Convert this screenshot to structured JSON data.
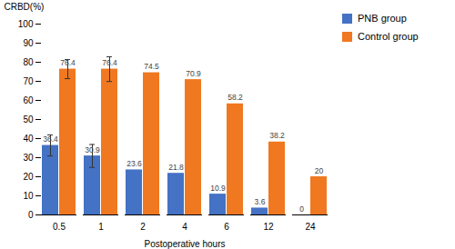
{
  "chart_data": {
    "type": "bar",
    "categories": [
      "0.5",
      "1",
      "2",
      "4",
      "6",
      "12",
      "24"
    ],
    "series": [
      {
        "name": "PNB group",
        "color": "#4472C4",
        "values": [
          36.4,
          30.9,
          23.6,
          21.8,
          10.9,
          3.6,
          0
        ],
        "errors": [
          5.5,
          6.0,
          0,
          0,
          0,
          0,
          0
        ]
      },
      {
        "name": "Control group",
        "color": "#F07820",
        "values": [
          76.4,
          76.4,
          74.5,
          70.9,
          58.2,
          38.2,
          20
        ],
        "errors": [
          5.0,
          6.5,
          0,
          0,
          0,
          0,
          0
        ]
      }
    ],
    "xlabel": "Postoperative hours",
    "ylabel": "CRBD(%)",
    "ylim": [
      0,
      100
    ],
    "yticks": [
      0,
      10,
      20,
      30,
      40,
      50,
      60,
      70,
      80,
      90,
      100
    ],
    "grid": false,
    "legend": "upper right",
    "data_labels": true
  }
}
